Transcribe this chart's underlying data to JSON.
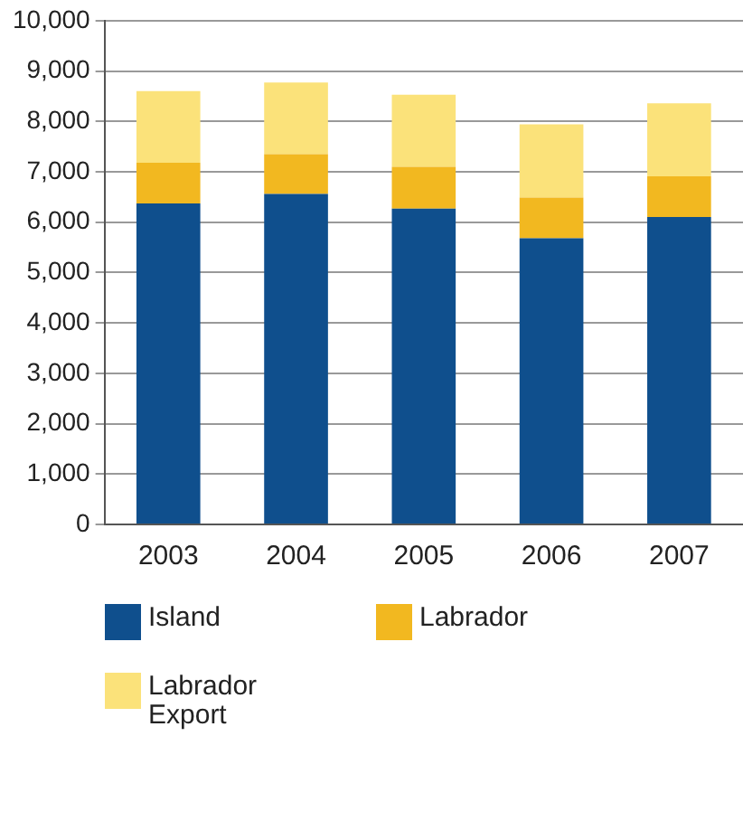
{
  "chart_data": {
    "type": "bar",
    "stacked": true,
    "categories": [
      "2003",
      "2004",
      "2005",
      "2006",
      "2007"
    ],
    "series": [
      {
        "name": "Island",
        "color": "#0f4f8d",
        "values": [
          6370,
          6560,
          6270,
          5680,
          6100
        ]
      },
      {
        "name": "Labrador",
        "color": "#f2b820",
        "values": [
          810,
          790,
          830,
          810,
          810
        ]
      },
      {
        "name": "Labrador Export",
        "color": "#fbe27a",
        "values": [
          1420,
          1420,
          1430,
          1450,
          1450
        ]
      }
    ],
    "ylim": [
      0,
      10000
    ],
    "yticks": [
      {
        "value": 0,
        "label": "0"
      },
      {
        "value": 1000,
        "label": "1,000"
      },
      {
        "value": 2000,
        "label": "2,000"
      },
      {
        "value": 3000,
        "label": "3,000"
      },
      {
        "value": 4000,
        "label": "4,000"
      },
      {
        "value": 5000,
        "label": "5,000"
      },
      {
        "value": 6000,
        "label": "6,000"
      },
      {
        "value": 7000,
        "label": "7,000"
      },
      {
        "value": 8000,
        "label": "8,000"
      },
      {
        "value": 9000,
        "label": "9,000"
      },
      {
        "value": 10000,
        "label": "10,000"
      }
    ],
    "grid": "y",
    "legend": "bottom"
  }
}
